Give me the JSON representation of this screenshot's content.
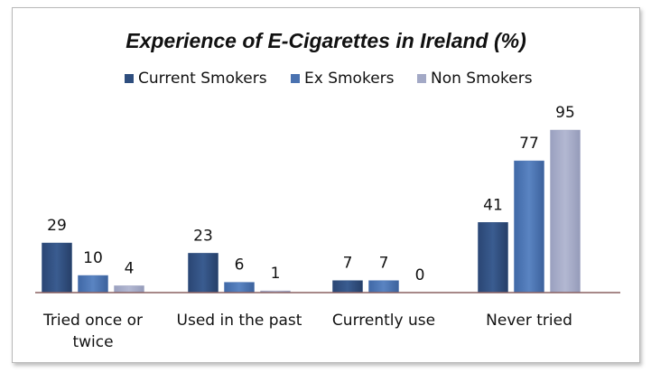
{
  "chart_data": {
    "type": "bar",
    "title": "Experience of E-Cigarettes in Ireland (%)",
    "categories": [
      [
        "Tried once or",
        "twice"
      ],
      [
        "Used in the past"
      ],
      [
        "Currently use"
      ],
      [
        "Never tried"
      ]
    ],
    "series": [
      {
        "name": "Current Smokers",
        "values": [
          29,
          23,
          7,
          41
        ],
        "color": "#2e4e7e"
      },
      {
        "name": "Ex Smokers",
        "values": [
          10,
          6,
          7,
          77
        ],
        "color": "#4a72b0"
      },
      {
        "name": "Non Smokers",
        "values": [
          4,
          1,
          0,
          95
        ],
        "color": "#a3a9c6"
      }
    ],
    "ylim": [
      0,
      100
    ],
    "legend_position": "top",
    "grid": false,
    "xlabel": "",
    "ylabel": ""
  }
}
